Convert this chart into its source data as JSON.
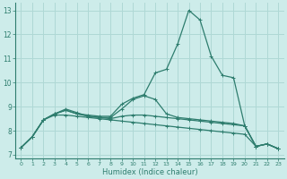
{
  "xlabel": "Humidex (Indice chaleur)",
  "background_color": "#cdecea",
  "grid_color": "#afd8d5",
  "line_color": "#2e7d6e",
  "xlim": [
    -0.5,
    23.5
  ],
  "ylim": [
    6.85,
    13.3
  ],
  "yticks": [
    7,
    8,
    9,
    10,
    11,
    12,
    13
  ],
  "xticks": [
    0,
    1,
    2,
    3,
    4,
    5,
    6,
    7,
    8,
    9,
    10,
    11,
    12,
    13,
    14,
    15,
    16,
    17,
    18,
    19,
    20,
    21,
    22,
    23
  ],
  "lines": [
    [
      7.3,
      7.75,
      8.45,
      8.7,
      8.85,
      8.7,
      8.65,
      8.6,
      8.6,
      9.1,
      9.35,
      9.5,
      10.4,
      10.55,
      11.6,
      13.0,
      12.6,
      11.1,
      10.3,
      10.2,
      8.2,
      7.35,
      7.45,
      7.25
    ],
    [
      7.3,
      7.75,
      8.45,
      8.7,
      8.85,
      8.7,
      8.6,
      8.55,
      8.55,
      8.9,
      9.3,
      9.45,
      9.3,
      8.7,
      8.55,
      8.5,
      8.45,
      8.4,
      8.35,
      8.3,
      8.2,
      7.35,
      7.45,
      7.25
    ],
    [
      7.3,
      7.75,
      8.45,
      8.7,
      8.9,
      8.75,
      8.6,
      8.55,
      8.5,
      8.6,
      8.65,
      8.65,
      8.6,
      8.55,
      8.5,
      8.45,
      8.4,
      8.35,
      8.3,
      8.25,
      8.2,
      7.35,
      7.45,
      7.25
    ],
    [
      7.3,
      7.75,
      8.45,
      8.65,
      8.65,
      8.6,
      8.55,
      8.5,
      8.45,
      8.4,
      8.35,
      8.3,
      8.25,
      8.2,
      8.15,
      8.1,
      8.05,
      8.0,
      7.95,
      7.9,
      7.85,
      7.35,
      7.45,
      7.25
    ]
  ]
}
